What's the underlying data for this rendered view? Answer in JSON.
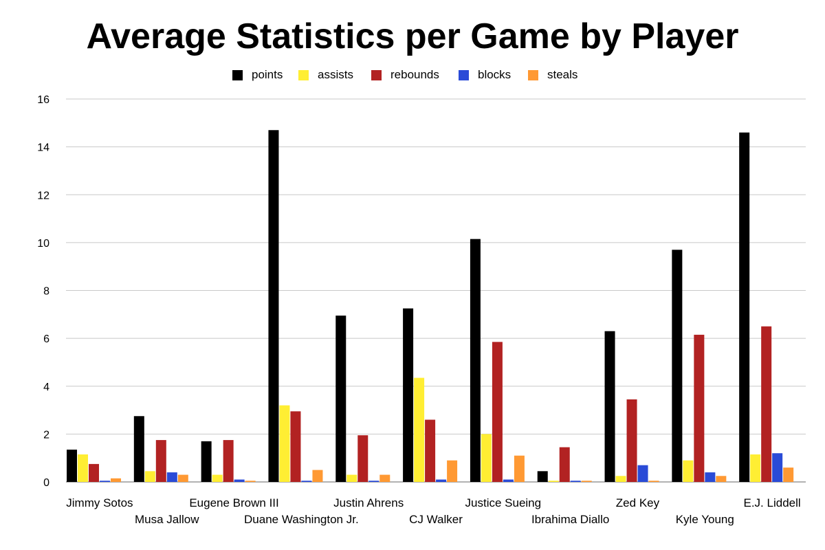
{
  "chart_data": {
    "type": "bar",
    "title": "Average Statistics per Game by Player",
    "xlabel": "",
    "ylabel": "",
    "ylim": [
      0,
      16
    ],
    "yticks": [
      0,
      2,
      4,
      6,
      8,
      10,
      12,
      14,
      16
    ],
    "grid": true,
    "legend_position": "top",
    "categories": [
      "Jimmy Sotos",
      "Musa Jallow",
      "Eugene Brown III",
      "Duane Washington Jr.",
      "Justin Ahrens",
      "CJ Walker",
      "Justice Sueing",
      "Ibrahima Diallo",
      "Zed Key",
      "Kyle Young",
      "E.J. Liddell"
    ],
    "series": [
      {
        "name": "points",
        "color": "#000000",
        "values": [
          1.35,
          2.75,
          1.7,
          14.7,
          6.95,
          7.25,
          10.15,
          0.45,
          6.3,
          9.7,
          14.6
        ]
      },
      {
        "name": "assists",
        "color": "#ffee33",
        "values": [
          1.15,
          0.45,
          0.3,
          3.2,
          0.3,
          4.35,
          2.0,
          0.05,
          0.25,
          0.9,
          1.15
        ]
      },
      {
        "name": "rebounds",
        "color": "#b22222",
        "values": [
          0.75,
          1.75,
          1.75,
          2.95,
          1.95,
          2.6,
          5.85,
          1.45,
          3.45,
          6.15,
          6.5
        ]
      },
      {
        "name": "blocks",
        "color": "#2a4bd7",
        "values": [
          0.05,
          0.4,
          0.1,
          0.05,
          0.05,
          0.1,
          0.1,
          0.05,
          0.7,
          0.4,
          1.2
        ]
      },
      {
        "name": "steals",
        "color": "#ff9933",
        "values": [
          0.15,
          0.3,
          0.05,
          0.5,
          0.3,
          0.9,
          1.1,
          0.05,
          0.05,
          0.25,
          0.6
        ]
      }
    ]
  }
}
